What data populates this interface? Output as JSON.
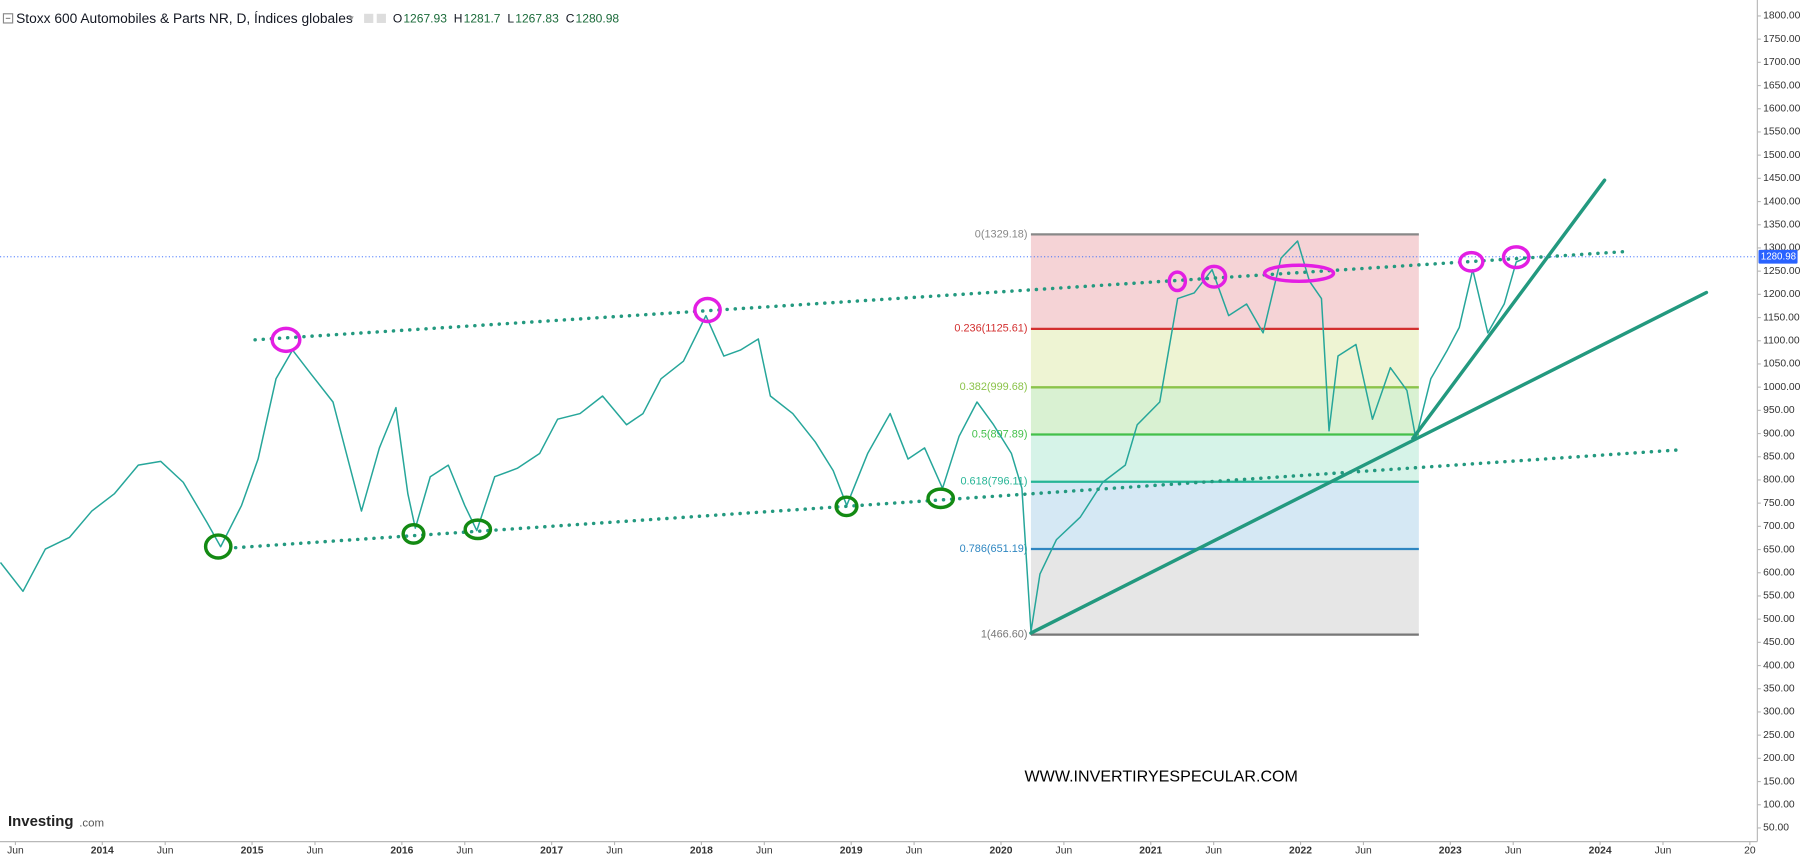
{
  "chart_data": {
    "type": "line",
    "title": "Stoxx 600 Automobiles & Parts NR, D, Índices globales",
    "ohlc": [
      {
        "label": "O",
        "value": 1267.93
      },
      {
        "label": "H",
        "value": 1281.7
      },
      {
        "label": "L",
        "value": 1267.83
      },
      {
        "label": "C",
        "value": 1280.98
      }
    ],
    "last_price": 1280.98,
    "last_price_color": "#2962ff",
    "watermark": "WWW.INVERTIRYESPECULAR.COM",
    "logo": {
      "brand": "Investing",
      "suffix": ".com"
    },
    "x": [
      2013.32,
      2013.47,
      2013.62,
      2013.78,
      2013.93,
      2014.08,
      2014.24,
      2014.39,
      2014.54,
      2014.7,
      2014.79,
      2014.93,
      2015.04,
      2015.16,
      2015.27,
      2015.39,
      2015.54,
      2015.66,
      2015.73,
      2015.85,
      2015.96,
      2016.04,
      2016.09,
      2016.19,
      2016.31,
      2016.42,
      2016.5,
      2016.62,
      2016.77,
      2016.92,
      2017.04,
      2017.19,
      2017.34,
      2017.5,
      2017.61,
      2017.73,
      2017.88,
      2018.03,
      2018.15,
      2018.26,
      2018.38,
      2018.46,
      2018.61,
      2018.76,
      2018.88,
      2018.97,
      2019.11,
      2019.26,
      2019.38,
      2019.49,
      2019.61,
      2019.72,
      2019.84,
      2019.95,
      2020.07,
      2020.14,
      2020.2,
      2020.26,
      2020.37,
      2020.53,
      2020.68,
      2020.83,
      2020.91,
      2021.06,
      2021.18,
      2021.29,
      2021.41,
      2021.52,
      2021.64,
      2021.75,
      2021.87,
      2021.98,
      2022.06,
      2022.14,
      2022.19,
      2022.25,
      2022.37,
      2022.48,
      2022.6,
      2022.71,
      2022.77,
      2022.87,
      2022.98,
      2023.06,
      2023.15,
      2023.25,
      2023.36,
      2023.44,
      2023.52
    ],
    "series": [
      {
        "color": "#26a69a",
        "values": [
          622,
          560,
          651,
          676,
          733,
          770,
          832,
          840,
          795,
          708,
          656,
          745,
          845,
          1018,
          1080,
          1030,
          968,
          820,
          733,
          869,
          956,
          770,
          696,
          807,
          832,
          745,
          691,
          807,
          825,
          857,
          931,
          943,
          981,
          919,
          943,
          1018,
          1056,
          1154,
          1067,
          1080,
          1104,
          981,
          943,
          882,
          820,
          745,
          857,
          943,
          845,
          869,
          782,
          894,
          968,
          919,
          857,
          782,
          473,
          597,
          671,
          720,
          795,
          832,
          919,
          968,
          1191,
          1203,
          1253,
          1154,
          1179,
          1117,
          1278,
          1315,
          1228,
          1191,
          906,
          1067,
          1092,
          931,
          1042,
          993,
          889,
          1018,
          1080,
          1129,
          1253,
          1117,
          1179,
          1270,
          1280.98
        ]
      }
    ],
    "xlim": [
      2013.317,
      2025.05
    ],
    "ylim": [
      23,
      1822
    ],
    "xticks": [
      {
        "value": 2013.42,
        "label": "Jun"
      },
      2014,
      {
        "value": 2014.42,
        "label": "Jun"
      },
      2015,
      {
        "value": 2015.42,
        "label": "Jun"
      },
      2016,
      {
        "value": 2016.42,
        "label": "Jun"
      },
      2017,
      {
        "value": 2017.42,
        "label": "Jun"
      },
      2018,
      {
        "value": 2018.42,
        "label": "Jun"
      },
      2019,
      {
        "value": 2019.42,
        "label": "Jun"
      },
      2020,
      {
        "value": 2020.42,
        "label": "Jun"
      },
      2021,
      {
        "value": 2021.42,
        "label": "Jun"
      },
      2022,
      {
        "value": 2022.42,
        "label": "Jun"
      },
      2023,
      {
        "value": 2023.42,
        "label": "Jun"
      },
      2024,
      {
        "value": 2024.42,
        "label": "Jun"
      },
      {
        "value": 2025,
        "label": "20"
      }
    ],
    "yticks": [
      {
        "value": 1800,
        "label": "1800.00"
      },
      {
        "value": 1750,
        "label": "1750.00"
      },
      {
        "value": 1700,
        "label": "1700.00"
      },
      {
        "value": 1650,
        "label": "1650.00"
      },
      {
        "value": 1600,
        "label": "1600.00"
      },
      {
        "value": 1550,
        "label": "1550.00"
      },
      {
        "value": 1500,
        "label": "1500.00"
      },
      {
        "value": 1450,
        "label": "1450.00"
      },
      {
        "value": 1400,
        "label": "1400.00"
      },
      {
        "value": 1350,
        "label": "1350.00"
      },
      {
        "value": 1300,
        "label": "1300.00"
      },
      {
        "value": 1250,
        "label": "1250.00"
      },
      {
        "value": 1200,
        "label": "1200.00"
      },
      {
        "value": 1150,
        "label": "1150.00"
      },
      {
        "value": 1100,
        "label": "1100.00"
      },
      {
        "value": 1050,
        "label": "1050.00"
      },
      {
        "value": 1000,
        "label": "1000.00"
      },
      {
        "value": 950,
        "label": "950.00"
      },
      {
        "value": 900,
        "label": "900.00"
      },
      {
        "value": 850,
        "label": "850.00"
      },
      {
        "value": 800,
        "label": "800.00"
      },
      {
        "value": 750,
        "label": "750.00"
      },
      {
        "value": 700,
        "label": "700.00"
      },
      {
        "value": 650,
        "label": "650.00"
      },
      {
        "value": 600,
        "label": "600.00"
      },
      {
        "value": 550,
        "label": "550.00"
      },
      {
        "value": 500,
        "label": "500.00"
      },
      {
        "value": 450,
        "label": "450.00"
      },
      {
        "value": 400,
        "label": "400.00"
      },
      {
        "value": 350,
        "label": "350.00"
      },
      {
        "value": 300,
        "label": "300.00"
      },
      {
        "value": 250,
        "label": "250.00"
      },
      {
        "value": 200,
        "label": "200.00"
      },
      {
        "value": 150,
        "label": "150.00"
      },
      {
        "value": 100,
        "label": "100.00"
      },
      {
        "value": 50,
        "label": "50.00"
      }
    ],
    "grid": false,
    "fibonacci": {
      "x": [
        2020.2,
        2022.79
      ],
      "levels": [
        {
          "value": 1329.18,
          "label": "0(1329.18)",
          "color": "#888888"
        },
        {
          "value": 1125.61,
          "label": "0.236(1125.61)",
          "color": "#d32f2f"
        },
        {
          "value": 999.68,
          "label": "0.382(999.68)",
          "color": "#8bc34a"
        },
        {
          "value": 897.89,
          "label": "0.5(897.89)",
          "color": "#43c04a"
        },
        {
          "value": 796.11,
          "label": "0.618(796.11)",
          "color": "#26b596"
        },
        {
          "value": 651.19,
          "label": "0.786(651.19)",
          "color": "#2e86c1"
        },
        {
          "value": 466.6,
          "label": "1(466.60)",
          "color": "#777777"
        }
      ],
      "fills": [
        "#f5d3d6",
        "#eef4d3",
        "#d9f1d2",
        "#d6f3e8",
        "#d5e8f4",
        "#e6e6e6"
      ]
    },
    "trendlines": [
      {
        "style": "dotted",
        "color": "#23997f",
        "x": [
          2015.02,
          2024.19
        ],
        "values": [
          1102,
          1292.6
        ]
      },
      {
        "style": "dotted",
        "color": "#23997f",
        "x": [
          2014.89,
          2024.51
        ],
        "values": [
          654,
          864.4
        ]
      },
      {
        "style": "solid",
        "color": "#23997f",
        "x": [
          2020.2,
          2024.71
        ],
        "values": [
          470,
          1204
        ]
      },
      {
        "style": "solid",
        "color": "#23997f",
        "x": [
          2022.75,
          2024.03
        ],
        "values": [
          889.6,
          1446
        ]
      }
    ]
  }
}
